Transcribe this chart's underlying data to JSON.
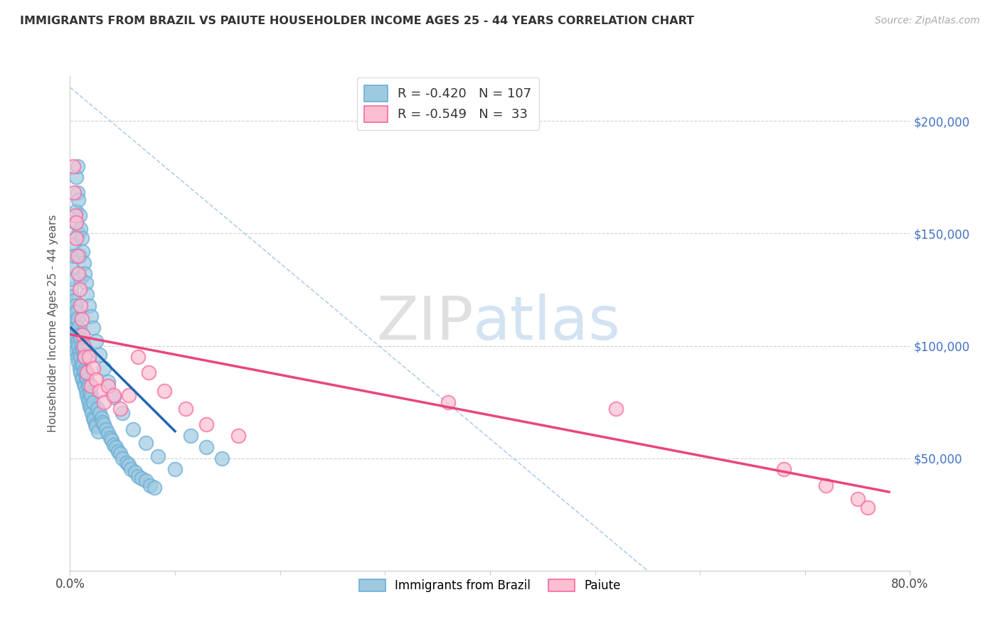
{
  "title": "IMMIGRANTS FROM BRAZIL VS PAIUTE HOUSEHOLDER INCOME AGES 25 - 44 YEARS CORRELATION CHART",
  "source": "Source: ZipAtlas.com",
  "ylabel": "Householder Income Ages 25 - 44 years",
  "xlim": [
    0.0,
    0.8
  ],
  "ylim": [
    0,
    220000
  ],
  "ytick_positions": [
    0,
    50000,
    100000,
    150000,
    200000
  ],
  "right_ytick_labels": [
    "",
    "$50,000",
    "$100,000",
    "$150,000",
    "$200,000"
  ],
  "xtick_positions": [
    0.0,
    0.1,
    0.2,
    0.3,
    0.4,
    0.5,
    0.6,
    0.7,
    0.8
  ],
  "xtick_labels": [
    "0.0%",
    "",
    "",
    "",
    "",
    "",
    "",
    "",
    "80.0%"
  ],
  "legend_brazil_r": "-0.420",
  "legend_brazil_n": "107",
  "legend_paiute_r": "-0.549",
  "legend_paiute_n": "33",
  "brazil_color": "#9ecae1",
  "paiute_color": "#fcbfd2",
  "brazil_edge_color": "#6baed6",
  "paiute_edge_color": "#f768a1",
  "brazil_line_color": "#2166ac",
  "paiute_line_color": "#e8467c",
  "dash_line_color": "#adc9e8",
  "right_axis_color": "#4472c4",
  "brazil_x": [
    0.001,
    0.001,
    0.002,
    0.002,
    0.002,
    0.003,
    0.003,
    0.003,
    0.004,
    0.004,
    0.004,
    0.004,
    0.005,
    0.005,
    0.005,
    0.005,
    0.006,
    0.006,
    0.006,
    0.006,
    0.007,
    0.007,
    0.007,
    0.007,
    0.008,
    0.008,
    0.008,
    0.008,
    0.009,
    0.009,
    0.009,
    0.009,
    0.01,
    0.01,
    0.01,
    0.01,
    0.011,
    0.011,
    0.011,
    0.012,
    0.012,
    0.012,
    0.013,
    0.013,
    0.013,
    0.014,
    0.014,
    0.014,
    0.015,
    0.015,
    0.016,
    0.016,
    0.017,
    0.017,
    0.018,
    0.018,
    0.019,
    0.019,
    0.02,
    0.02,
    0.021,
    0.022,
    0.022,
    0.023,
    0.024,
    0.025,
    0.026,
    0.027,
    0.028,
    0.03,
    0.031,
    0.032,
    0.034,
    0.036,
    0.038,
    0.04,
    0.042,
    0.044,
    0.046,
    0.048,
    0.05,
    0.054,
    0.056,
    0.058,
    0.062,
    0.065,
    0.068,
    0.072,
    0.076,
    0.08,
    0.006,
    0.007,
    0.008,
    0.009,
    0.01,
    0.011,
    0.012,
    0.013,
    0.014,
    0.015,
    0.016,
    0.018,
    0.02,
    0.022,
    0.025,
    0.028,
    0.032,
    0.036,
    0.042,
    0.05,
    0.06,
    0.072,
    0.084,
    0.1,
    0.115,
    0.13,
    0.145
  ],
  "brazil_y": [
    125000,
    130000,
    118000,
    122000,
    135000,
    110000,
    115000,
    145000,
    105000,
    112000,
    120000,
    140000,
    100000,
    108000,
    118000,
    155000,
    98000,
    105000,
    115000,
    160000,
    95000,
    102000,
    112000,
    168000,
    93000,
    100000,
    108000,
    150000,
    90000,
    97000,
    105000,
    140000,
    88000,
    95000,
    103000,
    130000,
    86000,
    92000,
    100000,
    85000,
    91000,
    98000,
    83000,
    89000,
    96000,
    82000,
    88000,
    95000,
    80000,
    87000,
    78000,
    85000,
    76000,
    83000,
    75000,
    82000,
    73000,
    79000,
    72000,
    78000,
    70000,
    68000,
    75000,
    67000,
    65000,
    64000,
    72000,
    62000,
    70000,
    68000,
    66000,
    65000,
    63000,
    61000,
    59000,
    58000,
    56000,
    55000,
    53000,
    52000,
    50000,
    48000,
    47000,
    45000,
    44000,
    42000,
    41000,
    40000,
    38000,
    37000,
    175000,
    180000,
    165000,
    158000,
    152000,
    148000,
    142000,
    137000,
    132000,
    128000,
    123000,
    118000,
    113000,
    108000,
    102000,
    96000,
    90000,
    84000,
    77000,
    70000,
    63000,
    57000,
    51000,
    45000,
    60000,
    55000,
    50000
  ],
  "paiute_x": [
    0.003,
    0.004,
    0.005,
    0.006,
    0.006,
    0.007,
    0.008,
    0.009,
    0.01,
    0.011,
    0.012,
    0.013,
    0.014,
    0.016,
    0.018,
    0.02,
    0.022,
    0.025,
    0.028,
    0.032,
    0.036,
    0.042,
    0.048,
    0.056,
    0.065,
    0.075,
    0.09,
    0.11,
    0.13,
    0.16,
    0.36,
    0.52,
    0.68,
    0.72,
    0.75,
    0.76
  ],
  "paiute_y": [
    180000,
    168000,
    158000,
    148000,
    155000,
    140000,
    132000,
    125000,
    118000,
    112000,
    105000,
    100000,
    95000,
    88000,
    95000,
    82000,
    90000,
    85000,
    80000,
    75000,
    82000,
    78000,
    72000,
    78000,
    95000,
    88000,
    80000,
    72000,
    65000,
    60000,
    75000,
    72000,
    45000,
    38000,
    32000,
    28000
  ],
  "brazil_regline": [
    0.001,
    0.1,
    108000,
    62000
  ],
  "paiute_regline": [
    0.001,
    0.78,
    105000,
    35000
  ],
  "dash_line": [
    0.0,
    0.55,
    215000,
    0
  ]
}
